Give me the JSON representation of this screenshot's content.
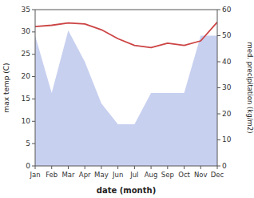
{
  "chart_data": {
    "type": "line",
    "xlabel": "date (month)",
    "ylabel": "max temp (C)",
    "y2label": "med. precipitation (kg/m2)",
    "categories": [
      "Jan",
      "Feb",
      "Mar",
      "Apr",
      "May",
      "Jun",
      "Jul",
      "Aug",
      "Sep",
      "Oct",
      "Nov",
      "Dec"
    ],
    "series": [
      {
        "type": "area",
        "axis": "y2",
        "color": "#c8d0f0",
        "values": [
          50.0,
          28.0,
          52.0,
          40.0,
          24.0,
          16.0,
          16.0,
          28.0,
          28.0,
          28.0,
          50.0,
          50.0
        ]
      },
      {
        "type": "line",
        "color": "#cc4444",
        "values": [
          31.2,
          31.5,
          32.0,
          31.8,
          30.5,
          28.5,
          27.0,
          26.5,
          27.5,
          27.0,
          28.0,
          32.2
        ]
      }
    ],
    "ylim": [
      0,
      35
    ],
    "yticks": [
      0,
      5,
      10,
      15,
      20,
      25,
      30,
      35
    ],
    "y2lim": [
      0,
      60
    ],
    "y2ticks": [
      0,
      10,
      20,
      30,
      40,
      50,
      60
    ],
    "grid": false
  }
}
